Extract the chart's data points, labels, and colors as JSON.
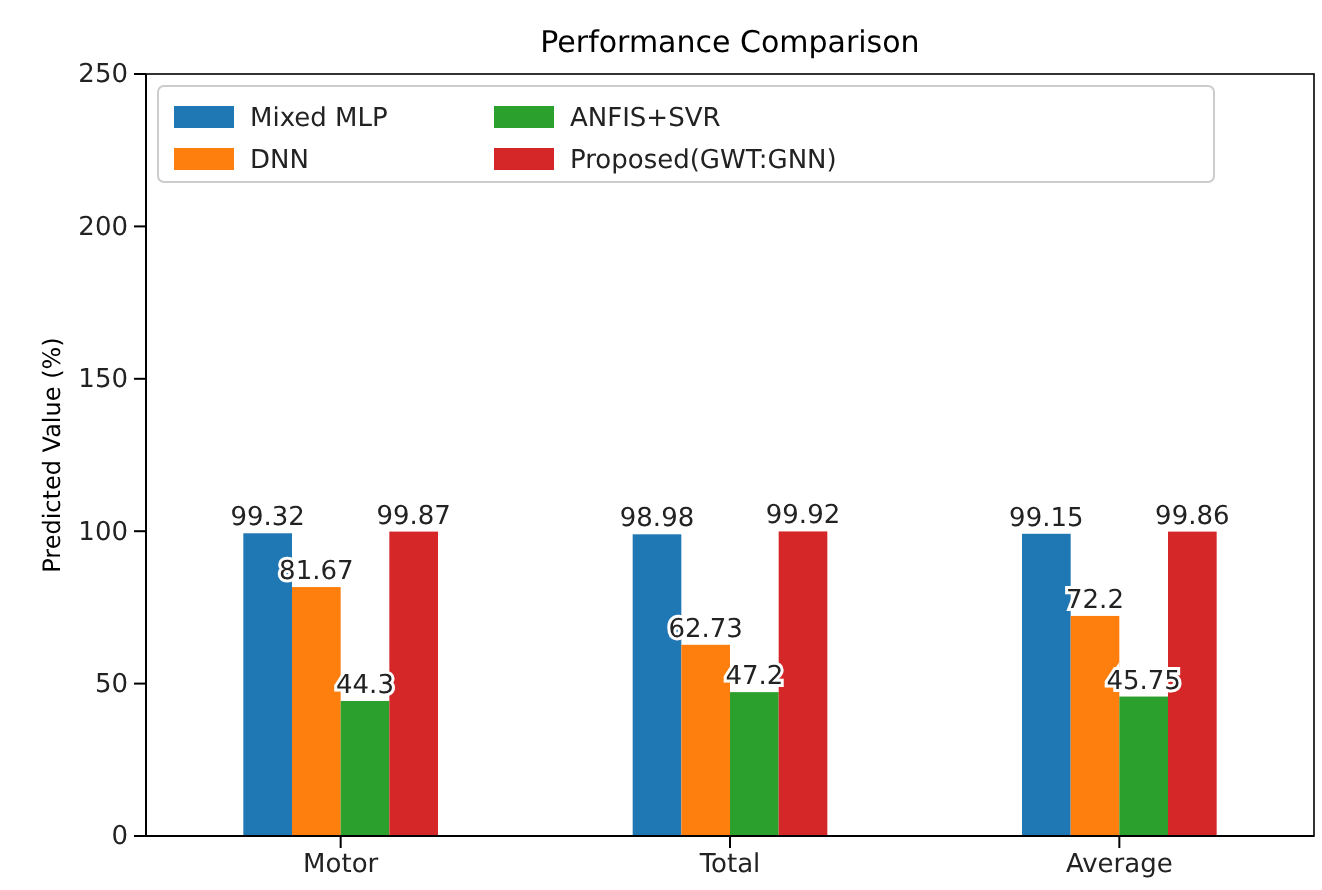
{
  "chart_data": {
    "type": "bar",
    "title": "Performance Comparison",
    "ylabel": "Predicted Value (%)",
    "categories": [
      "Motor",
      "Total",
      "Average"
    ],
    "series": [
      {
        "name": "Mixed MLP",
        "color": "#1f77b4",
        "values": [
          99.32,
          98.98,
          99.15
        ]
      },
      {
        "name": "DNN",
        "color": "#ff7f0e",
        "values": [
          81.67,
          62.73,
          72.2
        ]
      },
      {
        "name": "ANFIS+SVR",
        "color": "#2ca02c",
        "values": [
          44.3,
          47.2,
          45.75
        ]
      },
      {
        "name": "Proposed(GWT:GNN)",
        "color": "#d62728",
        "values": [
          99.87,
          99.92,
          99.86
        ]
      }
    ],
    "ylim": [
      0,
      250
    ],
    "yticks": [
      0,
      50,
      100,
      150,
      200,
      250
    ],
    "data_labels": true,
    "legend": "top left",
    "grid": false
  }
}
